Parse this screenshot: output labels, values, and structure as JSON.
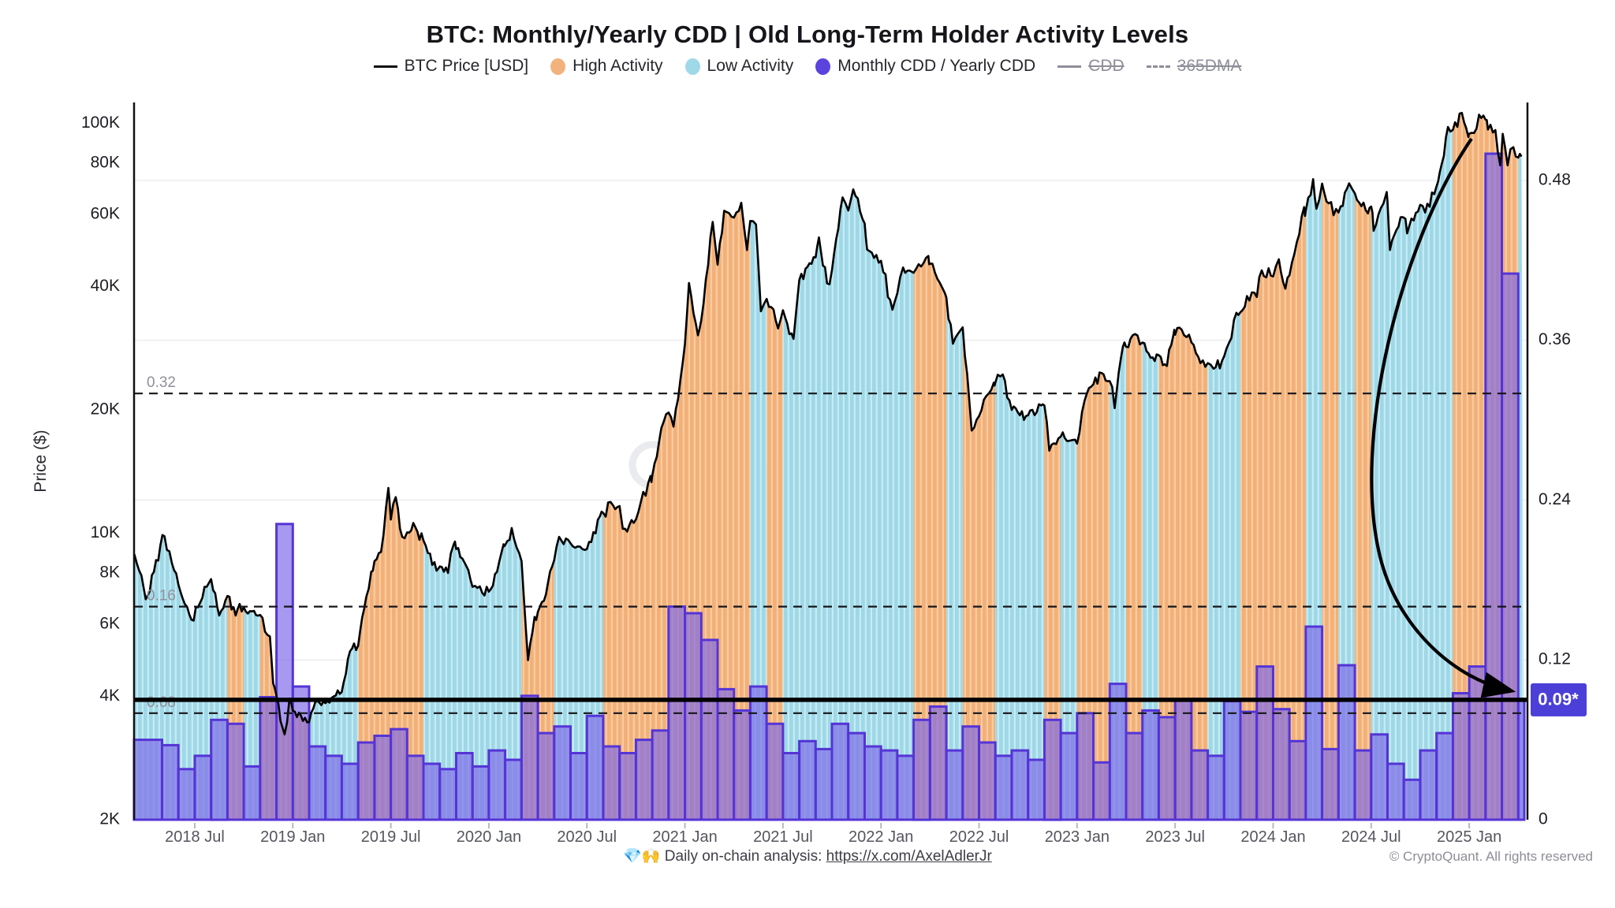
{
  "title": "BTC: Monthly/Yearly CDD | Old Long-Term Holder Activity Levels",
  "legend": {
    "items": [
      {
        "id": "btc-price",
        "label": "BTC Price [USD]",
        "swatch": "line",
        "color": "#111111",
        "disabled": false
      },
      {
        "id": "high-activity",
        "label": "High Activity",
        "swatch": "dot",
        "color": "#F2B27E",
        "disabled": false
      },
      {
        "id": "low-activity",
        "label": "Low Activity",
        "swatch": "dot",
        "color": "#9FD9E8",
        "disabled": false
      },
      {
        "id": "monthly-cdd",
        "label": "Monthly CDD / Yearly CDD",
        "swatch": "dot",
        "color": "#5B43DE",
        "disabled": false
      },
      {
        "id": "cdd",
        "label": "CDD",
        "swatch": "gline",
        "color": "#8e8e99",
        "disabled": true
      },
      {
        "id": "365dma",
        "label": "365DMA",
        "swatch": "gdash",
        "color": "#8e8e99",
        "disabled": true
      }
    ]
  },
  "watermark": "CryptoQuant",
  "footer": {
    "note_prefix": "💎🙌 Daily on-chain analysis: ",
    "link": "https://x.com/AxelAdlerJr",
    "copyright": "© CryptoQuant. All rights reserved"
  },
  "chart_data": {
    "type": "mixed",
    "description": "BTC price line (log scale, left axis) over monthly activity-state background bands and monthly CDD/yearly CDD bars (right axis). t = months since 2018-04-01.",
    "price_axis": {
      "label": "Price ($)",
      "scale": "log",
      "ticks": [
        [
          "100K",
          100000
        ],
        [
          "80K",
          80000
        ],
        [
          "60K",
          60000
        ],
        [
          "40K",
          40000
        ],
        [
          "20K",
          20000
        ],
        [
          "10K",
          10000
        ],
        [
          "8K",
          8000
        ],
        [
          "6K",
          6000
        ],
        [
          "4K",
          4000
        ],
        [
          "2K",
          2000
        ]
      ],
      "range_usd": [
        2000,
        115000
      ]
    },
    "ratio_axis": {
      "ticks": [
        [
          "0",
          0
        ],
        [
          "0.12",
          0.12
        ],
        [
          "0.24",
          0.24
        ],
        [
          "0.36",
          0.36
        ],
        [
          "0.48",
          0.48
        ]
      ],
      "range": [
        0,
        0.54
      ],
      "grid": "faint"
    },
    "x_axis": {
      "tick_labels": [
        "2018 Jul",
        "2019 Jan",
        "2019 Jul",
        "2020 Jan",
        "2020 Jul",
        "2021 Jan",
        "2021 Jul",
        "2022 Jan",
        "2022 Jul",
        "2023 Jan",
        "2023 Jul",
        "2024 Jan",
        "2024 Jul",
        "2025 Jan"
      ],
      "tick_t": [
        3,
        9,
        15,
        21,
        27,
        33,
        39,
        45,
        51,
        57,
        63,
        69,
        75,
        81
      ]
    },
    "reference_lines": {
      "dashed_levels": [
        {
          "value": 0.32,
          "label": "0.32"
        },
        {
          "value": 0.16,
          "label": "0.16"
        },
        {
          "value": 0.08,
          "label": "0.08"
        }
      ],
      "current_level": {
        "value": 0.09,
        "label": "0.09*",
        "badge_color": "#4B3FD8",
        "style": "thick-solid-black"
      }
    },
    "months_start": "2018-04",
    "activity_state": [
      "L",
      "L",
      "L",
      "L",
      "L",
      "H",
      "L",
      "H",
      "H",
      "H",
      "L",
      "L",
      "L",
      "H",
      "H",
      "H",
      "H",
      "L",
      "L",
      "L",
      "L",
      "L",
      "L",
      "H",
      "H",
      "L",
      "L",
      "L",
      "H",
      "H",
      "H",
      "H",
      "H",
      "H",
      "H",
      "H",
      "H",
      "L",
      "H",
      "L",
      "L",
      "L",
      "L",
      "L",
      "L",
      "L",
      "L",
      "H",
      "H",
      "L",
      "H",
      "H",
      "L",
      "L",
      "L",
      "H",
      "L",
      "H",
      "H",
      "L",
      "H",
      "L",
      "H",
      "H",
      "H",
      "L",
      "L",
      "H",
      "H",
      "H",
      "H",
      "L",
      "H",
      "L",
      "H",
      "L",
      "L",
      "L",
      "L",
      "L",
      "H",
      "H",
      "H",
      "H",
      "L"
    ],
    "cdd_monthly_over_yearly": [
      0.06,
      0.056,
      0.038,
      0.048,
      0.075,
      0.072,
      0.04,
      0.092,
      0.222,
      0.1,
      0.055,
      0.048,
      0.042,
      0.058,
      0.063,
      0.068,
      0.048,
      0.042,
      0.038,
      0.05,
      0.04,
      0.052,
      0.045,
      0.093,
      0.065,
      0.07,
      0.05,
      0.078,
      0.055,
      0.05,
      0.06,
      0.067,
      0.16,
      0.155,
      0.135,
      0.098,
      0.082,
      0.1,
      0.072,
      0.05,
      0.059,
      0.053,
      0.072,
      0.065,
      0.055,
      0.052,
      0.048,
      0.075,
      0.085,
      0.052,
      0.07,
      0.058,
      0.048,
      0.052,
      0.045,
      0.075,
      0.065,
      0.08,
      0.043,
      0.102,
      0.065,
      0.082,
      0.077,
      0.09,
      0.052,
      0.048,
      0.089,
      0.081,
      0.115,
      0.083,
      0.059,
      0.145,
      0.053,
      0.116,
      0.052,
      0.064,
      0.042,
      0.03,
      0.052,
      0.065,
      0.095,
      0.115,
      0.5,
      0.41,
      0.09
    ],
    "btc_price_anchors_t_usd": [
      [
        -0.7,
        8900
      ],
      [
        -0.4,
        8100
      ],
      [
        0,
        6900
      ],
      [
        0.5,
        8050
      ],
      [
        0.9,
        9350
      ],
      [
        1.15,
        9830
      ],
      [
        1.6,
        8450
      ],
      [
        2,
        7500
      ],
      [
        2.8,
        6150
      ],
      [
        3.2,
        6600
      ],
      [
        3.6,
        7400
      ],
      [
        4,
        7730
      ],
      [
        4.5,
        6300
      ],
      [
        5,
        7030
      ],
      [
        5.5,
        6300
      ],
      [
        6,
        6600
      ],
      [
        6.5,
        6450
      ],
      [
        7,
        6320
      ],
      [
        7.6,
        5600
      ],
      [
        7.8,
        4300
      ],
      [
        8,
        4010
      ],
      [
        8.5,
        3230
      ],
      [
        8.8,
        3950
      ],
      [
        9,
        3690
      ],
      [
        9.5,
        3590
      ],
      [
        10,
        3460
      ],
      [
        10.5,
        3900
      ],
      [
        11,
        3850
      ],
      [
        11.5,
        4000
      ],
      [
        12,
        4100
      ],
      [
        12.5,
        5150
      ],
      [
        13,
        5320
      ],
      [
        13.5,
        7000
      ],
      [
        13.8,
        8050
      ],
      [
        14,
        8550
      ],
      [
        14.4,
        9000
      ],
      [
        14.85,
        12900
      ],
      [
        15,
        10800
      ],
      [
        15.3,
        12250
      ],
      [
        15.7,
        9800
      ],
      [
        16,
        10050
      ],
      [
        16.5,
        10350
      ],
      [
        17,
        9600
      ],
      [
        17.8,
        8100
      ],
      [
        18,
        8300
      ],
      [
        18.5,
        8000
      ],
      [
        18.85,
        9400
      ],
      [
        19,
        9150
      ],
      [
        19.5,
        8500
      ],
      [
        20,
        7400
      ],
      [
        20.6,
        7150
      ],
      [
        21,
        7200
      ],
      [
        21.5,
        8050
      ],
      [
        21.9,
        9400
      ],
      [
        22,
        9350
      ],
      [
        22.4,
        10300
      ],
      [
        23,
        8550
      ],
      [
        23.4,
        4900
      ],
      [
        23.8,
        6250
      ],
      [
        24,
        6430
      ],
      [
        24.5,
        7100
      ],
      [
        25,
        8600
      ],
      [
        25.3,
        9800
      ],
      [
        26,
        9450
      ],
      [
        27,
        9140
      ],
      [
        27.8,
        11000
      ],
      [
        28,
        11200
      ],
      [
        28.6,
        11700
      ],
      [
        29,
        11650
      ],
      [
        29.2,
        10250
      ],
      [
        30,
        10800
      ],
      [
        30.9,
        13800
      ],
      [
        31,
        13800
      ],
      [
        31.7,
        18700
      ],
      [
        32,
        19700
      ],
      [
        32.3,
        18200
      ],
      [
        33,
        29000
      ],
      [
        33.25,
        40800
      ],
      [
        33.8,
        30400
      ],
      [
        34,
        33100
      ],
      [
        34.7,
        57500
      ],
      [
        35,
        45200
      ],
      [
        35.4,
        61200
      ],
      [
        36,
        58900
      ],
      [
        36.45,
        64000
      ],
      [
        36.8,
        49100
      ],
      [
        37,
        57800
      ],
      [
        37.35,
        56700
      ],
      [
        37.65,
        34800
      ],
      [
        38,
        37300
      ],
      [
        38.7,
        31600
      ],
      [
        39,
        35000
      ],
      [
        39.65,
        29800
      ],
      [
        40,
        41500
      ],
      [
        40.5,
        44700
      ],
      [
        41,
        47100
      ],
      [
        41.2,
        52700
      ],
      [
        41.7,
        40700
      ],
      [
        42,
        43800
      ],
      [
        42.65,
        66000
      ],
      [
        43,
        61300
      ],
      [
        43.3,
        69000
      ],
      [
        44,
        57000
      ],
      [
        44.15,
        49200
      ],
      [
        45,
        46200
      ],
      [
        45.7,
        35100
      ],
      [
        46,
        38500
      ],
      [
        46.35,
        44500
      ],
      [
        47,
        43200
      ],
      [
        47.9,
        47500
      ],
      [
        48,
        45500
      ],
      [
        48.9,
        38600
      ],
      [
        49,
        37600
      ],
      [
        49.4,
        29000
      ],
      [
        50,
        31800
      ],
      [
        50.55,
        17800
      ],
      [
        51,
        19300
      ],
      [
        51.9,
        23300
      ],
      [
        52,
        23300
      ],
      [
        52.45,
        24400
      ],
      [
        53,
        20000
      ],
      [
        53.5,
        19400
      ],
      [
        54,
        19400
      ],
      [
        54.8,
        20500
      ],
      [
        55,
        20500
      ],
      [
        55.3,
        15900
      ],
      [
        56,
        17200
      ],
      [
        56.5,
        16800
      ],
      [
        57,
        16550
      ],
      [
        57.45,
        21000
      ],
      [
        58,
        23100
      ],
      [
        58.5,
        24600
      ],
      [
        59,
        23500
      ],
      [
        59.3,
        20200
      ],
      [
        59.8,
        28500
      ],
      [
        60,
        28500
      ],
      [
        60.4,
        30400
      ],
      [
        61,
        29200
      ],
      [
        61.5,
        26800
      ],
      [
        62,
        27200
      ],
      [
        62.5,
        25600
      ],
      [
        62.9,
        30500
      ],
      [
        63,
        30500
      ],
      [
        63.4,
        31400
      ],
      [
        64,
        29200
      ],
      [
        64.55,
        26000
      ],
      [
        65,
        26000
      ],
      [
        65.35,
        25200
      ],
      [
        66,
        27000
      ],
      [
        66.75,
        34500
      ],
      [
        67,
        34600
      ],
      [
        67.4,
        37900
      ],
      [
        68,
        37700
      ],
      [
        68.3,
        43800
      ],
      [
        69,
        42300
      ],
      [
        69.35,
        46600
      ],
      [
        69.75,
        39500
      ],
      [
        70,
        42600
      ],
      [
        70.9,
        62500
      ],
      [
        71,
        61200
      ],
      [
        71.45,
        73100
      ],
      [
        71.65,
        61900
      ],
      [
        72,
        71300
      ],
      [
        72.4,
        63800
      ],
      [
        73,
        60600
      ],
      [
        73.65,
        71400
      ],
      [
        74,
        67500
      ],
      [
        74.8,
        60300
      ],
      [
        75,
        62700
      ],
      [
        75.15,
        54700
      ],
      [
        75.9,
        66800
      ],
      [
        76,
        64600
      ],
      [
        76.15,
        49100
      ],
      [
        76.8,
        59000
      ],
      [
        77,
        58900
      ],
      [
        77.2,
        53900
      ],
      [
        78,
        63300
      ],
      [
        78.3,
        60600
      ],
      [
        79,
        70200
      ],
      [
        79.2,
        76000
      ],
      [
        79.7,
        98000
      ],
      [
        80,
        96400
      ],
      [
        80.55,
        106100
      ],
      [
        80.95,
        92600
      ],
      [
        81,
        94400
      ],
      [
        81.3,
        94700
      ],
      [
        81.6,
        105000
      ],
      [
        82,
        102100
      ],
      [
        82.15,
        96600
      ],
      [
        82.6,
        96300
      ],
      [
        82.9,
        79000
      ],
      [
        83.05,
        94300
      ],
      [
        83.35,
        79000
      ],
      [
        83.7,
        87500
      ],
      [
        84,
        82500
      ],
      [
        84.2,
        83000
      ]
    ],
    "colors": {
      "high_activity": "#F2B078",
      "high_activity_stripe": "#F7CBA0",
      "low_activity": "#9ED8E7",
      "low_activity_stripe": "#C6EAF3",
      "cdd_bar_fill": "rgba(125,104,232,0.68)",
      "cdd_bar_stroke": "#5434D6",
      "price_line": "#000000",
      "badge": "#4B3FD8"
    },
    "annotation_arrow": {
      "from_t_price": [
        81.3,
        105000
      ],
      "to": "current_level_badge"
    }
  }
}
